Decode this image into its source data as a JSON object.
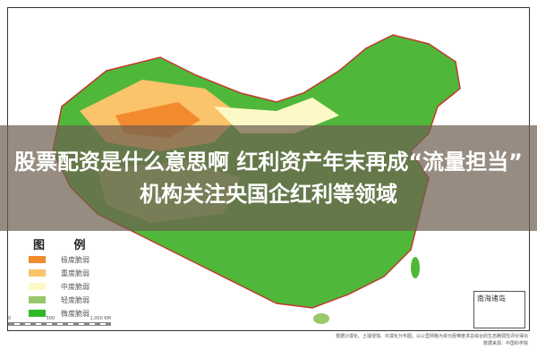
{
  "headline": "股票配资是什么意思啊 红利资产年末再成“流量担当” 机构关注央国企红利等领域",
  "legend": {
    "title": "图 例",
    "items": [
      {
        "label": "极度脆弱",
        "color": "#f28a2e"
      },
      {
        "label": "重度脆弱",
        "color": "#fbc36a"
      },
      {
        "label": "中度脆弱",
        "color": "#fdf9c6"
      },
      {
        "label": "轻度脆弱",
        "color": "#98c86a"
      },
      {
        "label": "微度脆弱",
        "color": "#2fb82a"
      }
    ]
  },
  "scale": {
    "ticks": [
      "0",
      "500",
      "1,000 KM"
    ]
  },
  "inset_label": "南海诸岛",
  "footnote": {
    "line1": "根据沙漠化、土壤侵蚀、石漠化分布图，以公里网格为单元经带度求总综合的生态脆弱性评价得出",
    "line2": "数据来源：中国科学院"
  }
}
